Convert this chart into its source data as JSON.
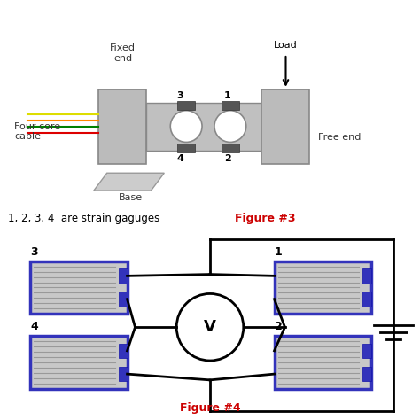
{
  "fig3_label": "Figure #3",
  "fig4_label": "Figure #4",
  "caption": "1, 2, 3, 4  are strain gaguges",
  "caption_color": "#000000",
  "fig_label_color": "#cc0000",
  "bg_color": "#ffffff",
  "gauge_fill": "#3333bb",
  "body_color": "#aaaaaa"
}
